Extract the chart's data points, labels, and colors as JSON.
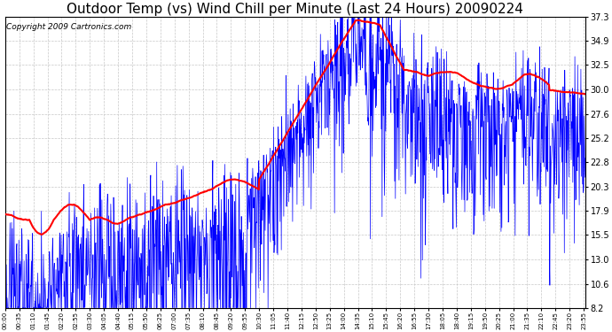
{
  "title": "Outdoor Temp (vs) Wind Chill per Minute (Last 24 Hours) 20090224",
  "copyright": "Copyright 2009 Cartronics.com",
  "yticks": [
    8.2,
    10.6,
    13.0,
    15.5,
    17.9,
    20.3,
    22.8,
    25.2,
    27.6,
    30.0,
    32.5,
    34.9,
    37.3
  ],
  "ymin": 8.2,
  "ymax": 37.3,
  "bg_color": "#ffffff",
  "plot_bg_color": "#ffffff",
  "grid_color": "#c8c8c8",
  "outer_temp_color": "red",
  "wind_chill_color": "blue",
  "title_fontsize": 11,
  "copyright_fontsize": 6.5,
  "n_minutes": 1440,
  "tick_interval": 35
}
